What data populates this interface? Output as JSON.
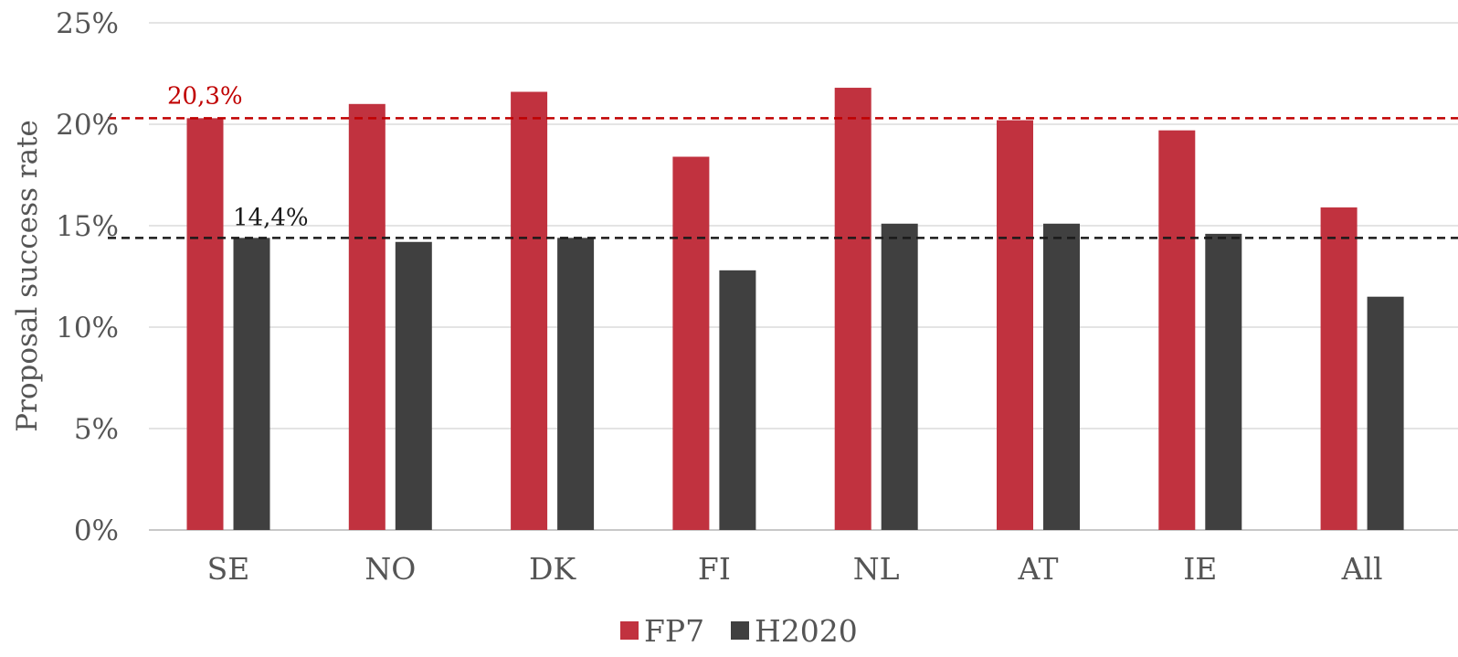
{
  "chart_data": {
    "type": "bar",
    "categories": [
      "SE",
      "NO",
      "DK",
      "FI",
      "NL",
      "AT",
      "IE",
      "All"
    ],
    "series": [
      {
        "name": "FP7",
        "color": "#c1323f",
        "values": [
          20.3,
          21.0,
          21.6,
          18.4,
          21.8,
          20.2,
          19.7,
          15.9
        ]
      },
      {
        "name": "H2020",
        "color": "#404040",
        "values": [
          14.4,
          14.2,
          14.4,
          12.8,
          15.1,
          15.1,
          14.6,
          11.5
        ]
      }
    ],
    "ylabel": "Proposal success rate",
    "ylim": [
      0,
      25
    ],
    "yticks": [
      0,
      5,
      10,
      15,
      20,
      25
    ],
    "ytick_labels": [
      "0%",
      "5%",
      "10%",
      "15%",
      "20%",
      "25%"
    ],
    "grid": true,
    "legend_position": "bottom-center",
    "reference_lines": [
      {
        "value": 20.3,
        "label": "20,3%",
        "color": "#c00000",
        "style": "dashed"
      },
      {
        "value": 14.4,
        "label": "14,4%",
        "color": "#1a1a1a",
        "style": "dashed"
      }
    ]
  }
}
